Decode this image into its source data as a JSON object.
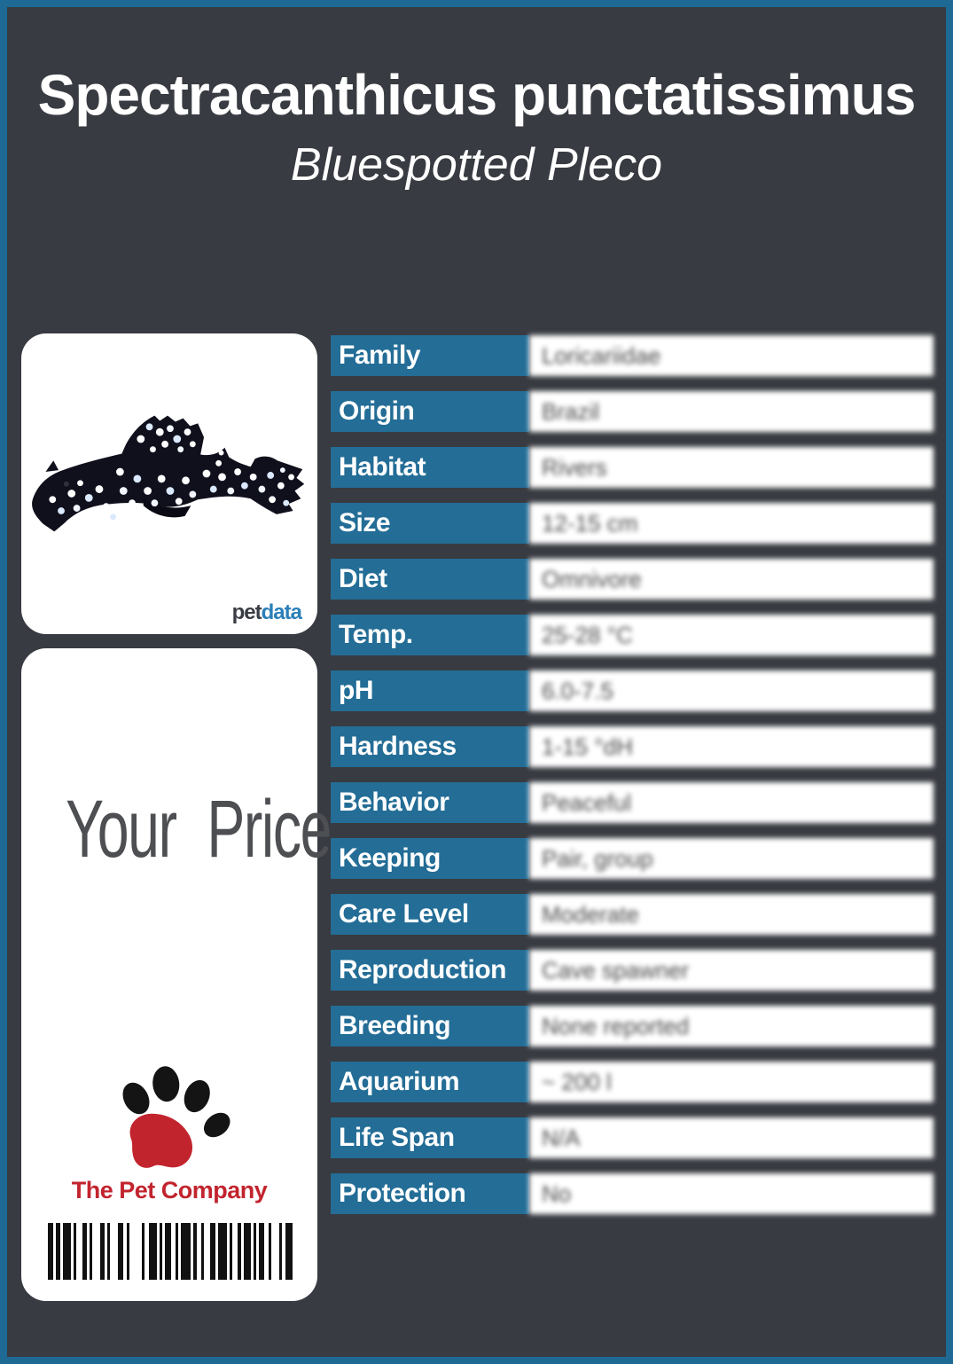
{
  "header": {
    "scientific_name": "Spectracanthicus punctatissimus",
    "common_name": "Bluespotted Pleco"
  },
  "photo_card": {
    "brand_pet": "pet",
    "brand_data": "data",
    "photo_subject": "bluespotted pleco fish, dark body with white-blue spots, facing left"
  },
  "price_card": {
    "price_label": "Your Price",
    "company": "The Pet Company",
    "barcode": [
      4,
      2,
      3,
      2,
      6,
      2,
      2,
      5,
      3,
      2,
      2,
      6,
      3,
      2,
      2,
      6,
      4,
      3,
      2,
      9,
      2,
      3,
      6,
      2,
      2,
      2,
      5,
      3,
      2,
      2,
      7,
      2,
      3,
      3,
      2,
      5,
      4,
      2,
      6,
      2,
      2,
      4,
      3,
      2,
      5,
      2,
      2,
      2,
      4,
      3,
      2,
      6,
      2,
      3,
      5
    ]
  },
  "table": {
    "rows": [
      {
        "label": "Family",
        "value": "Loricariidae"
      },
      {
        "label": "Origin",
        "value": "Brazil"
      },
      {
        "label": "Habitat",
        "value": "Rivers"
      },
      {
        "label": "Size",
        "value": "12-15 cm"
      },
      {
        "label": "Diet",
        "value": "Omnivore"
      },
      {
        "label": "Temp.",
        "value": "25-28 °C"
      },
      {
        "label": "pH",
        "value": "6.0-7.5"
      },
      {
        "label": "Hardness",
        "value": "1-15 °dH"
      },
      {
        "label": "Behavior",
        "value": "Peaceful"
      },
      {
        "label": "Keeping",
        "value": "Pair, group"
      },
      {
        "label": "Care Level",
        "value": "Moderate"
      },
      {
        "label": "Reproduction",
        "value": "Cave spawner"
      },
      {
        "label": "Breeding",
        "value": "None reported"
      },
      {
        "label": "Aquarium",
        "value": "~ 200 l"
      },
      {
        "label": "Life Span",
        "value": "N/A"
      },
      {
        "label": "Protection",
        "value": "No"
      }
    ]
  },
  "colors": {
    "accent_border": "#1e6a94",
    "page_background": "#383b41",
    "label_background": "#236d96",
    "company_red": "#c2242e",
    "petdata_blue": "#2b7fb8",
    "fish_body": "#10101d"
  }
}
